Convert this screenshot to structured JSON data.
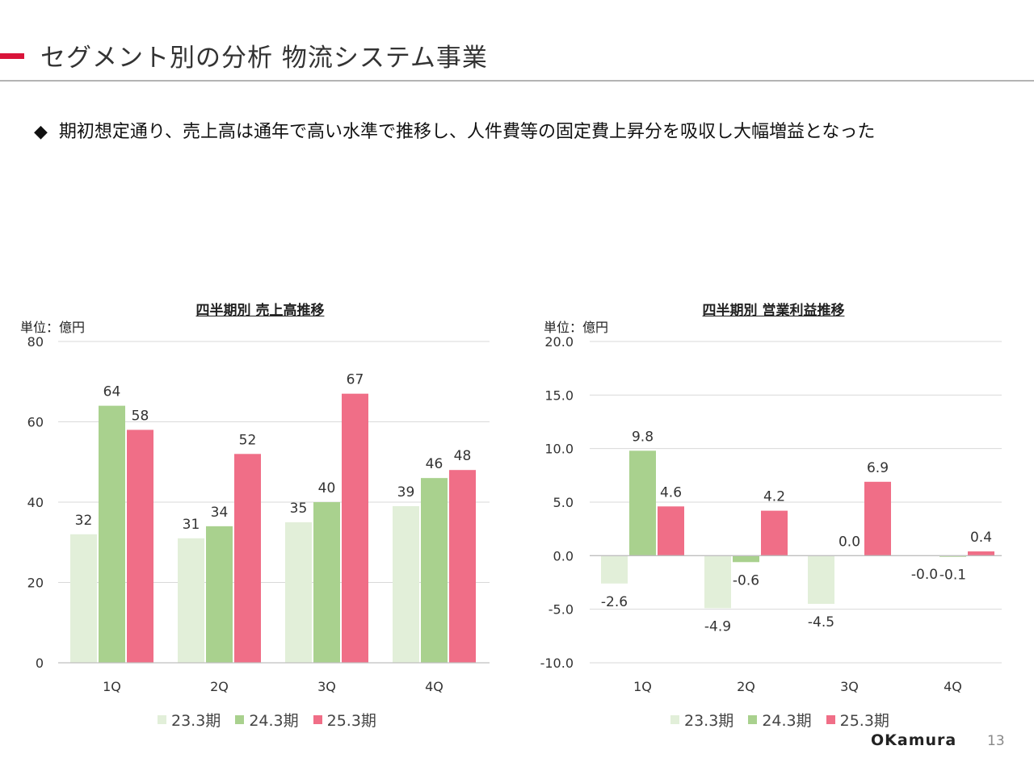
{
  "header": {
    "title": "セグメント別の分析  物流システム事業"
  },
  "bullet": {
    "mark": "◆",
    "text": "期初想定通り、売上高は通年で高い水準で推移し、人件費等の固定費上昇分を吸収し大幅増益となった"
  },
  "colors": {
    "accent": "#d9143a",
    "s1": "#e2efd9",
    "s2": "#a9d18e",
    "s3": "#f06e87"
  },
  "chart_data": [
    {
      "type": "bar",
      "title": "四半期別 売上高推移",
      "unit": "単位：億円",
      "categories": [
        "1Q",
        "2Q",
        "3Q",
        "4Q"
      ],
      "ylim": [
        0,
        80
      ],
      "yticks": [
        "80",
        "60",
        "40",
        "20",
        "0"
      ],
      "grid": true,
      "legend_position": "bottom",
      "series": [
        {
          "name": "23.3期",
          "values": [
            32,
            31,
            35,
            39
          ],
          "labels": [
            "32",
            "31",
            "35",
            "39"
          ]
        },
        {
          "name": "24.3期",
          "values": [
            64,
            34,
            40,
            46
          ],
          "labels": [
            "64",
            "34",
            "40",
            "46"
          ]
        },
        {
          "name": "25.3期",
          "values": [
            58,
            52,
            67,
            48
          ],
          "labels": [
            "58",
            "52",
            "67",
            "48"
          ]
        }
      ]
    },
    {
      "type": "bar",
      "title": "四半期別 営業利益推移",
      "unit": "単位：億円",
      "categories": [
        "1Q",
        "2Q",
        "3Q",
        "4Q"
      ],
      "ylim": [
        -10,
        20
      ],
      "yticks": [
        "20.0",
        "15.0",
        "10.0",
        "5.0",
        "0.0",
        "-5.0",
        "-10.0"
      ],
      "grid": true,
      "legend_position": "bottom",
      "series": [
        {
          "name": "23.3期",
          "values": [
            -2.6,
            -4.9,
            -4.5,
            -0.02
          ],
          "labels": [
            "-2.6",
            "-4.9",
            "-4.5",
            "-0.0"
          ]
        },
        {
          "name": "24.3期",
          "values": [
            9.8,
            -0.6,
            0.0,
            -0.1
          ],
          "labels": [
            "9.8",
            "-0.6",
            "0.0",
            "-0.1"
          ]
        },
        {
          "name": "25.3期",
          "values": [
            4.6,
            4.2,
            6.9,
            0.4
          ],
          "labels": [
            "4.6",
            "4.2",
            "6.9",
            "0.4"
          ]
        }
      ]
    }
  ],
  "footer": {
    "logo": "OKamura",
    "page": "13"
  }
}
